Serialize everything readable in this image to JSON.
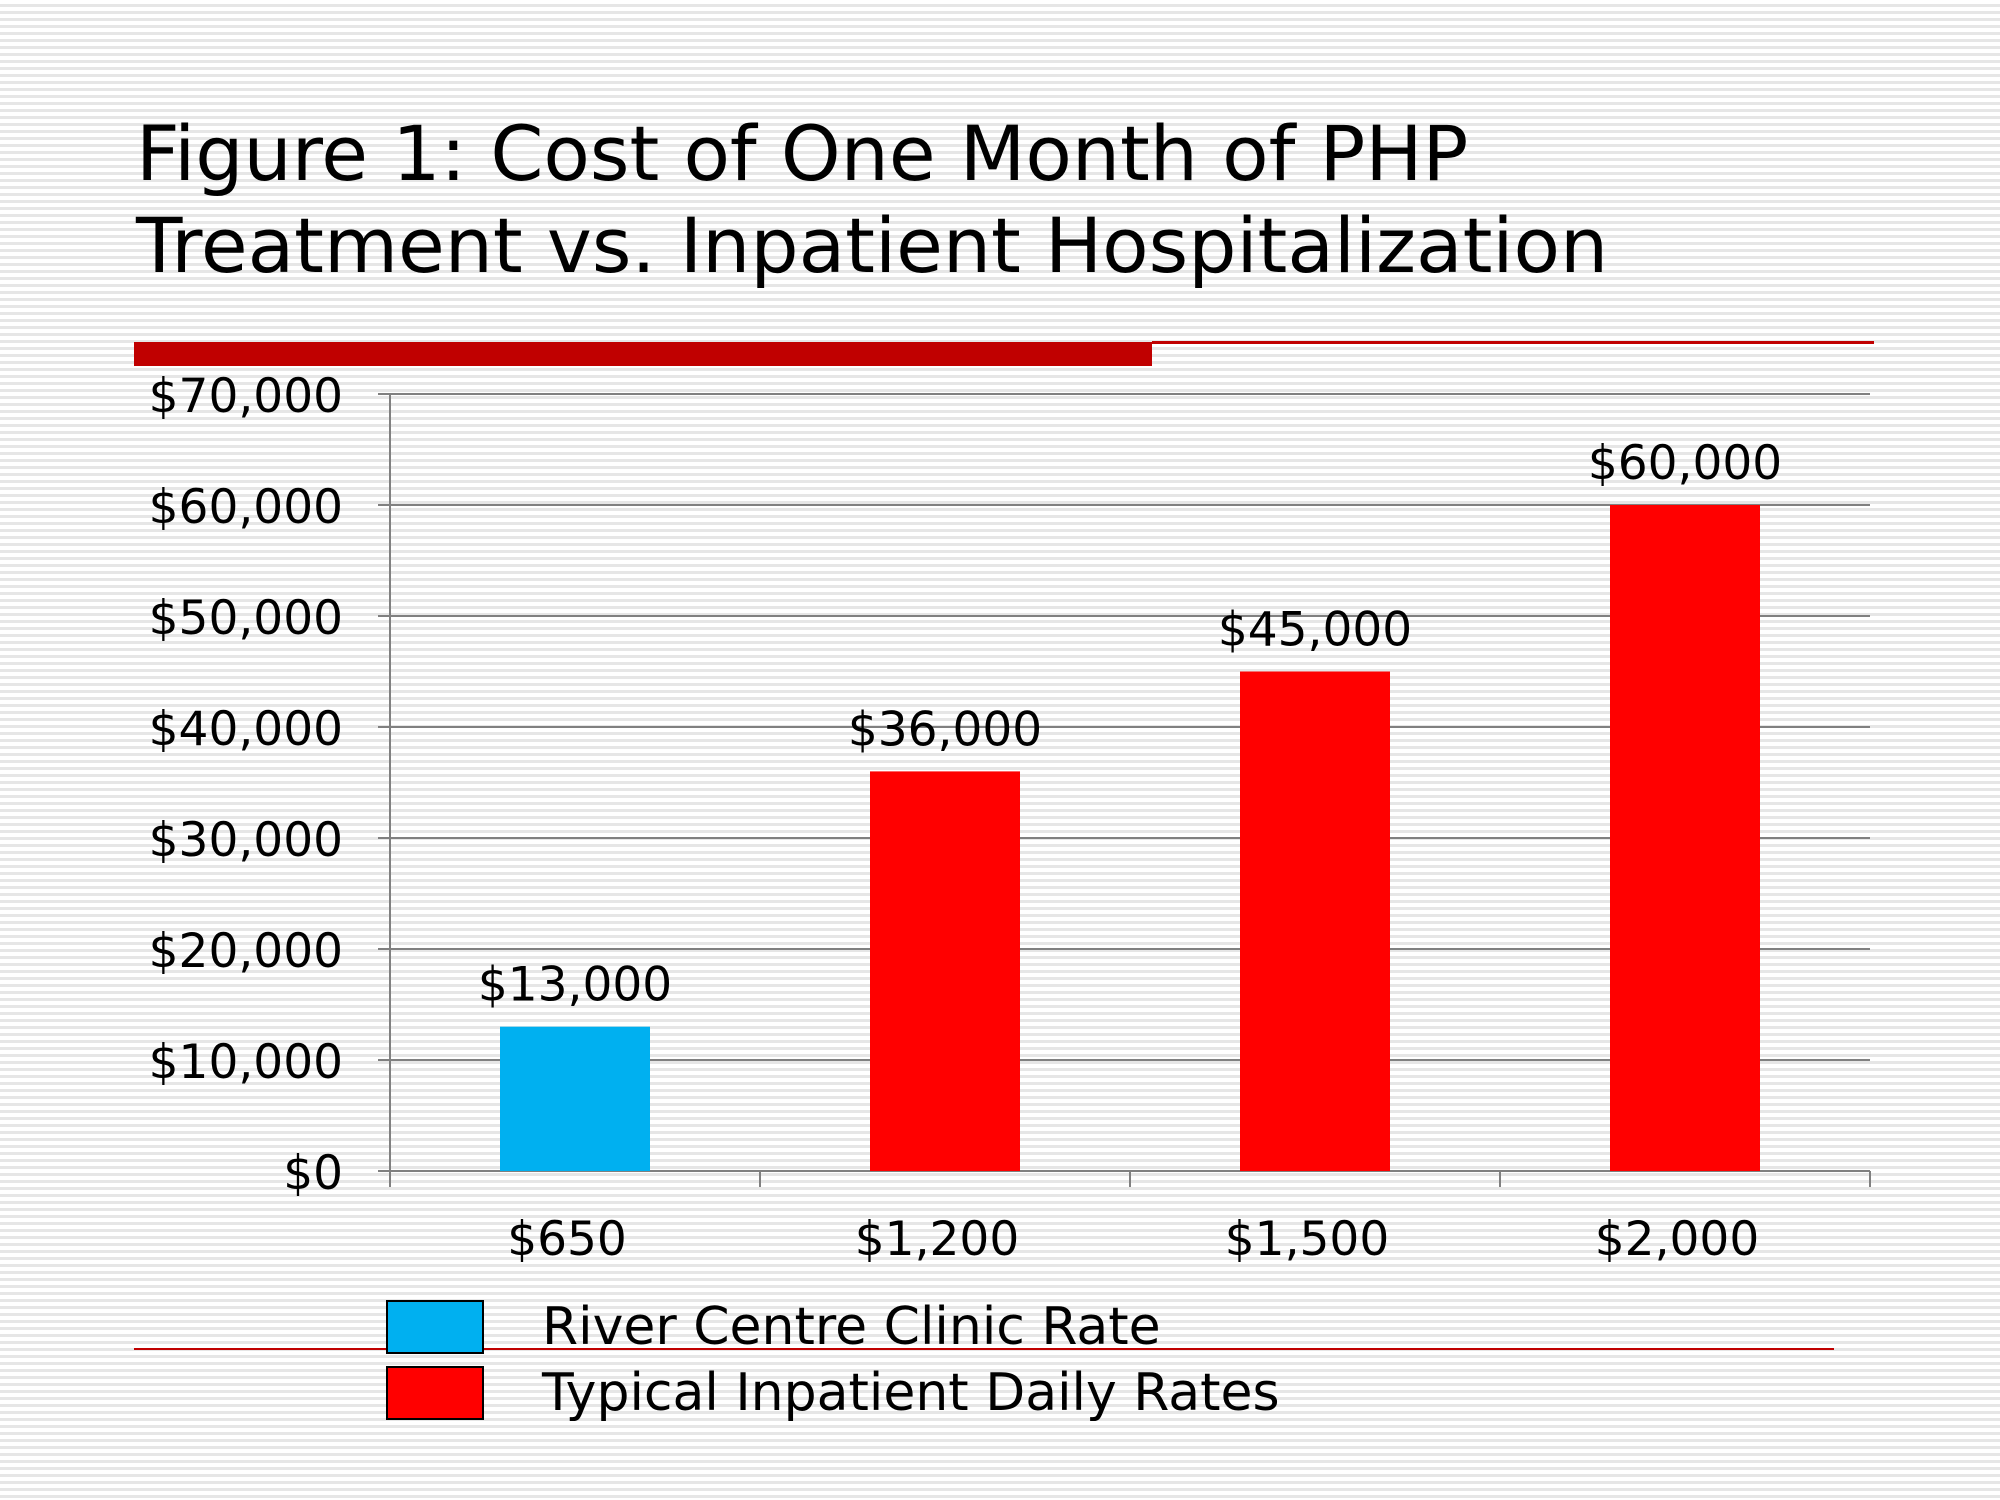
{
  "slide": {
    "title_lines": [
      "Figure 1: Cost of One Month of PHP",
      "Treatment vs. Inpatient Hospitalization"
    ],
    "accent_color": "#c00000"
  },
  "chart_data": {
    "type": "bar",
    "title": "Figure 1: Cost of One Month of PHP Treatment vs. Inpatient Hospitalization",
    "categories": [
      "$650",
      "$1,200",
      "$1,500",
      "$2,000"
    ],
    "values": [
      13000,
      36000,
      45000,
      60000
    ],
    "value_labels": [
      "$13,000",
      "$36,000",
      "$45,000",
      "$60,000"
    ],
    "bar_colors": [
      "#00b0f0",
      "#ff0000",
      "#ff0000",
      "#ff0000"
    ],
    "ylim": [
      0,
      70000
    ],
    "yticks": [
      0,
      10000,
      20000,
      30000,
      40000,
      50000,
      60000,
      70000
    ],
    "ytick_labels": [
      "$0",
      "$10,000",
      "$20,000",
      "$30,000",
      "$40,000",
      "$50,000",
      "$60,000",
      "$70,000"
    ],
    "xlabel": "",
    "ylabel": "",
    "grid": true,
    "legend_position": "bottom",
    "legend": [
      {
        "label": "River Centre Clinic Rate",
        "color": "#00b0f0"
      },
      {
        "label": "Typical Inpatient Daily Rates",
        "color": "#ff0000"
      }
    ]
  }
}
